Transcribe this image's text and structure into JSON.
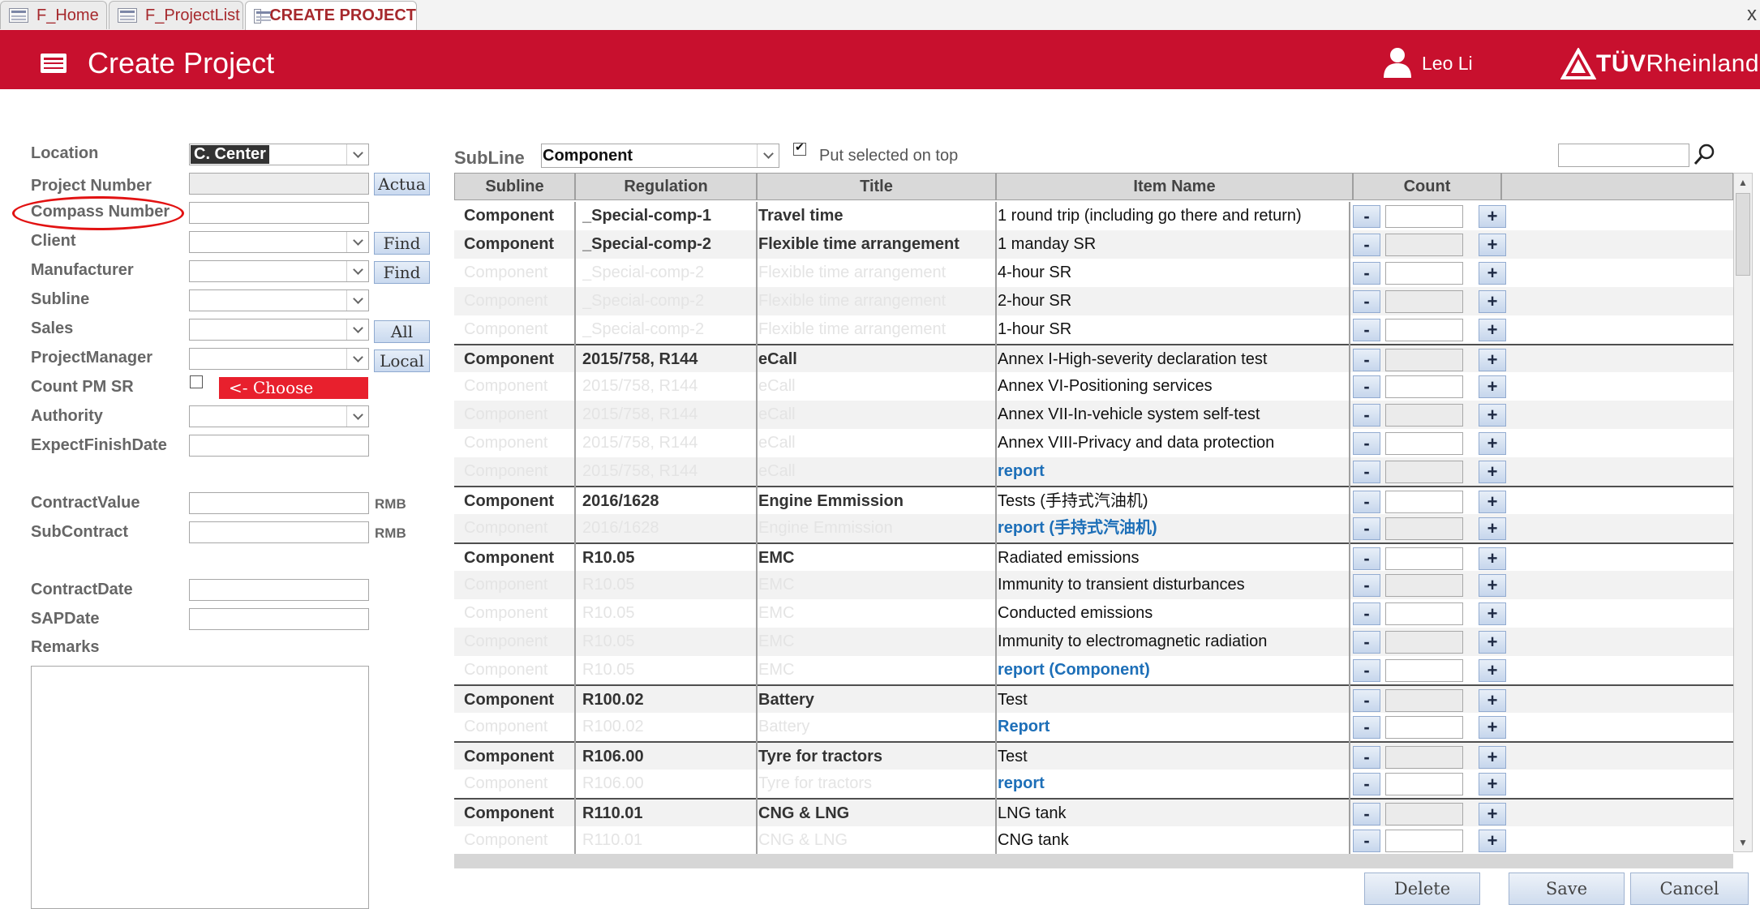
{
  "tabs": [
    {
      "label": "F_Home",
      "active": false
    },
    {
      "label": "F_ProjectList",
      "active": false
    },
    {
      "label": "CREATE PROJECT",
      "active": true
    }
  ],
  "tab_close_glyph": "x",
  "header": {
    "title": "Create Project",
    "user_name": "Leo Li",
    "brand_main": "TÜV",
    "brand_rest": "Rheinland",
    "color": "#c8102e"
  },
  "form": {
    "location_label": "Location",
    "location_value": "C. Center",
    "project_number_label": "Project Number",
    "actual_button": "Actua",
    "compass_number_label": "Compass Number",
    "client_label": "Client",
    "client_find_button": "Find",
    "manufacturer_label": "Manufacturer",
    "manufacturer_find_button": "Find",
    "subline_label": "Subline",
    "sales_label": "Sales",
    "sales_all_button": "All",
    "project_manager_label": "ProjectManager",
    "project_manager_local_button": "Local",
    "count_pm_sr_label": "Count PM SR",
    "count_pm_sr_checked": false,
    "choose_button": "<- Choose",
    "authority_label": "Authority",
    "expect_finish_date_label": "ExpectFinishDate",
    "contract_value_label": "ContractValue",
    "contract_value_unit": "RMB",
    "subcontract_label": "SubContract",
    "subcontract_unit": "RMB",
    "contract_date_label": "ContractDate",
    "sap_date_label": "SAPDate",
    "remarks_label": "Remarks"
  },
  "filter": {
    "subline_label": "SubLine",
    "subline_value": "Component",
    "put_selected_label": "Put selected on top",
    "put_selected_checked": true
  },
  "table": {
    "columns": [
      "Subline",
      "Regulation",
      "Title",
      "Item Name",
      "Count"
    ],
    "minus_label": "-",
    "plus_label": "+",
    "rows": [
      {
        "subline": "Component",
        "regulation": "_Special-comp-1",
        "title": "Travel time",
        "item": "1 round trip (including go there and return)",
        "faded": false,
        "report": false,
        "group_start": true
      },
      {
        "subline": "Component",
        "regulation": "_Special-comp-2",
        "title": "Flexible time arrangement",
        "item": "1 manday SR",
        "faded": false,
        "report": false,
        "group_start": false
      },
      {
        "subline": "Component",
        "regulation": "_Special-comp-2",
        "title": "Flexible time arrangement",
        "item": "4-hour SR",
        "faded": true,
        "report": false,
        "group_start": false
      },
      {
        "subline": "Component",
        "regulation": "_Special-comp-2",
        "title": "Flexible time arrangement",
        "item": "2-hour SR",
        "faded": true,
        "report": false,
        "group_start": false
      },
      {
        "subline": "Component",
        "regulation": "_Special-comp-2",
        "title": "Flexible time arrangement",
        "item": "1-hour SR",
        "faded": true,
        "report": false,
        "group_start": false
      },
      {
        "subline": "Component",
        "regulation": "2015/758, R144",
        "title": "eCall",
        "item": "Annex I-High-severity declaration test",
        "faded": false,
        "report": false,
        "group_start": true
      },
      {
        "subline": "Component",
        "regulation": "2015/758, R144",
        "title": "eCall",
        "item": "Annex VI-Positioning services",
        "faded": true,
        "report": false,
        "group_start": false
      },
      {
        "subline": "Component",
        "regulation": "2015/758, R144",
        "title": "eCall",
        "item": "Annex VII-In-vehicle system self-test",
        "faded": true,
        "report": false,
        "group_start": false
      },
      {
        "subline": "Component",
        "regulation": "2015/758, R144",
        "title": "eCall",
        "item": "Annex VIII-Privacy and data protection",
        "faded": true,
        "report": false,
        "group_start": false
      },
      {
        "subline": "Component",
        "regulation": "2015/758, R144",
        "title": "eCall",
        "item": "report",
        "faded": true,
        "report": true,
        "group_start": false
      },
      {
        "subline": "Component",
        "regulation": "2016/1628",
        "title": "Engine Emmission",
        "item": "Tests (手持式汽油机)",
        "faded": false,
        "report": false,
        "group_start": true
      },
      {
        "subline": "Component",
        "regulation": "2016/1628",
        "title": "Engine Emmission",
        "item": "report (手持式汽油机)",
        "faded": true,
        "report": true,
        "group_start": false
      },
      {
        "subline": "Component",
        "regulation": "R10.05",
        "title": "EMC",
        "item": "Radiated emissions",
        "faded": false,
        "report": false,
        "group_start": true
      },
      {
        "subline": "Component",
        "regulation": "R10.05",
        "title": "EMC",
        "item": "Immunity to transient disturbances",
        "faded": true,
        "report": false,
        "group_start": false
      },
      {
        "subline": "Component",
        "regulation": "R10.05",
        "title": "EMC",
        "item": "Conducted emissions",
        "faded": true,
        "report": false,
        "group_start": false
      },
      {
        "subline": "Component",
        "regulation": "R10.05",
        "title": "EMC",
        "item": "Immunity to electromagnetic radiation",
        "faded": true,
        "report": false,
        "group_start": false
      },
      {
        "subline": "Component",
        "regulation": "R10.05",
        "title": "EMC",
        "item": "report (Component)",
        "faded": true,
        "report": true,
        "group_start": false
      },
      {
        "subline": "Component",
        "regulation": "R100.02",
        "title": "Battery",
        "item": "Test",
        "faded": false,
        "report": false,
        "group_start": true
      },
      {
        "subline": "Component",
        "regulation": "R100.02",
        "title": "Battery",
        "item": "Report",
        "faded": true,
        "report": true,
        "group_start": false
      },
      {
        "subline": "Component",
        "regulation": "R106.00",
        "title": "Tyre for tractors",
        "item": "Test",
        "faded": false,
        "report": false,
        "group_start": true
      },
      {
        "subline": "Component",
        "regulation": "R106.00",
        "title": "Tyre for tractors",
        "item": "report",
        "faded": true,
        "report": true,
        "group_start": false
      },
      {
        "subline": "Component",
        "regulation": "R110.01",
        "title": "CNG & LNG",
        "item": "LNG tank",
        "faded": false,
        "report": false,
        "group_start": true
      },
      {
        "subline": "Component",
        "regulation": "R110.01",
        "title": "CNG & LNG",
        "item": "CNG tank",
        "faded": true,
        "report": false,
        "group_start": false
      }
    ]
  },
  "actions": {
    "delete": "Delete",
    "save": "Save",
    "cancel": "Cancel"
  }
}
